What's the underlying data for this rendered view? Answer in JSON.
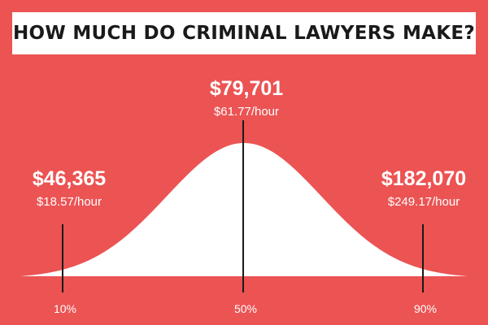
{
  "title": "HOW MUCH DO CRIMINAL LAWYERS MAKE?",
  "colors": {
    "background": "#ec5353",
    "curve": "#ffffff",
    "marker_line": "#1a1a1a",
    "title_bg": "#ffffff",
    "title_text": "#1a1a1a"
  },
  "chart_data": {
    "type": "area",
    "title": "HOW MUCH DO CRIMINAL LAWYERS MAKE?",
    "distribution": "normal",
    "grid": false,
    "legend": "none",
    "percentiles": [
      {
        "label": "10%",
        "salary": "$46,365",
        "hourly": "$18.57/hour"
      },
      {
        "label": "50%",
        "salary": "$79,701",
        "hourly": "$61.77/hour"
      },
      {
        "label": "90%",
        "salary": "$182,070",
        "hourly": "$249.17/hour"
      }
    ]
  }
}
